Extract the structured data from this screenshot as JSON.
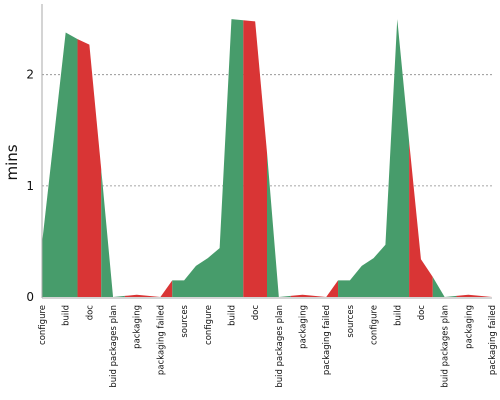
{
  "chart_data": {
    "type": "area",
    "title": "",
    "xlabel": "",
    "ylabel": "mins",
    "ylim": [
      0,
      2.6
    ],
    "yticks": [
      0,
      1,
      2
    ],
    "grid": "horizontal dotted",
    "categories": [
      "configure",
      "build",
      "doc",
      "buid packages plan",
      "packaging",
      "packaging failed",
      "sources",
      "configure",
      "build",
      "doc",
      "buid packages plan",
      "packaging",
      "packaging failed",
      "sources",
      "configure",
      "build",
      "doc",
      "buid packages plan",
      "packaging",
      "packaging failed"
    ],
    "profile": [
      {
        "x": 0.0,
        "y": 0.48
      },
      {
        "x": 1.0,
        "y": 2.38
      },
      {
        "x": 1.5,
        "y": 2.32
      },
      {
        "x": 2.0,
        "y": 2.27
      },
      {
        "x": 2.5,
        "y": 1.15
      },
      {
        "x": 3.0,
        "y": 0.0
      },
      {
        "x": 4.0,
        "y": 0.02
      },
      {
        "x": 4.5,
        "y": 0.01
      },
      {
        "x": 5.0,
        "y": 0.0
      },
      {
        "x": 5.5,
        "y": 0.15
      },
      {
        "x": 6.0,
        "y": 0.15
      },
      {
        "x": 6.5,
        "y": 0.28
      },
      {
        "x": 7.0,
        "y": 0.35
      },
      {
        "x": 7.5,
        "y": 0.44
      },
      {
        "x": 8.0,
        "y": 2.5
      },
      {
        "x": 8.5,
        "y": 2.49
      },
      {
        "x": 9.0,
        "y": 2.48
      },
      {
        "x": 9.5,
        "y": 1.3
      },
      {
        "x": 10.0,
        "y": 0.0
      },
      {
        "x": 11.0,
        "y": 0.02
      },
      {
        "x": 11.5,
        "y": 0.01
      },
      {
        "x": 12.0,
        "y": 0.0
      },
      {
        "x": 12.5,
        "y": 0.15
      },
      {
        "x": 13.0,
        "y": 0.15
      },
      {
        "x": 13.5,
        "y": 0.28
      },
      {
        "x": 14.0,
        "y": 0.35
      },
      {
        "x": 14.5,
        "y": 0.47
      },
      {
        "x": 15.0,
        "y": 2.5
      },
      {
        "x": 15.5,
        "y": 1.4
      },
      {
        "x": 16.0,
        "y": 0.34
      },
      {
        "x": 16.5,
        "y": 0.18
      },
      {
        "x": 17.0,
        "y": 0.0
      },
      {
        "x": 18.0,
        "y": 0.02
      },
      {
        "x": 18.5,
        "y": 0.01
      },
      {
        "x": 19.0,
        "y": 0.0
      }
    ],
    "segments": [
      {
        "from": 0.0,
        "to": 1.5,
        "status": "success"
      },
      {
        "from": 1.5,
        "to": 2.5,
        "status": "failed"
      },
      {
        "from": 2.5,
        "to": 3.5,
        "status": "success"
      },
      {
        "from": 3.5,
        "to": 5.5,
        "status": "failed"
      },
      {
        "from": 5.5,
        "to": 8.5,
        "status": "success"
      },
      {
        "from": 8.5,
        "to": 9.5,
        "status": "failed"
      },
      {
        "from": 9.5,
        "to": 10.5,
        "status": "success"
      },
      {
        "from": 10.5,
        "to": 12.5,
        "status": "failed"
      },
      {
        "from": 12.5,
        "to": 15.5,
        "status": "success"
      },
      {
        "from": 15.5,
        "to": 16.5,
        "status": "failed"
      },
      {
        "from": 16.5,
        "to": 17.5,
        "status": "success"
      },
      {
        "from": 17.5,
        "to": 19.0,
        "status": "failed"
      }
    ],
    "colors": {
      "success": "#479c6b",
      "failed": "#d93535",
      "grid": "#888888",
      "axis": "#aaaaaa"
    }
  }
}
